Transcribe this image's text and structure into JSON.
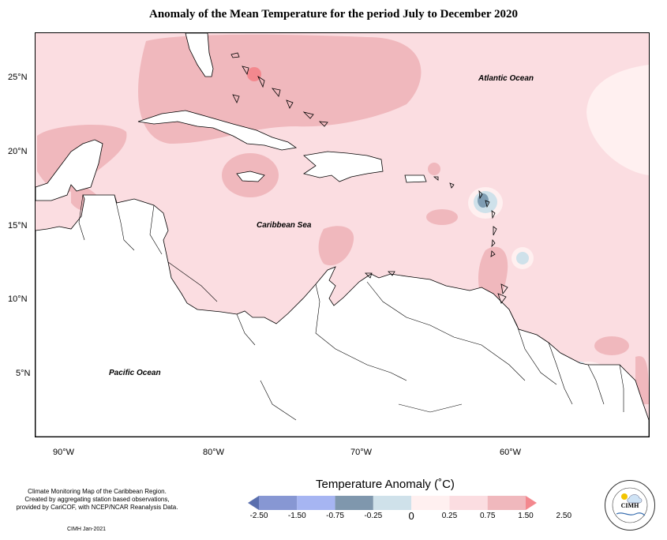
{
  "title": "Anomaly of the Mean Temperature for the period July to December 2020",
  "map": {
    "latitude_ticks": [
      "25°N",
      "20°N",
      "15°N",
      "10°N",
      "5°N"
    ],
    "longitude_ticks": [
      "90°W",
      "80°W",
      "70°W",
      "60°W"
    ],
    "labels": {
      "atlantic": "Atlantic Ocean",
      "caribbean": "Caribbean Sea",
      "pacific": "Pacific Ocean"
    },
    "colors": {
      "anom_025_075": "#fbdde1",
      "anom_075_150": "#f0b8bd",
      "anom_150_250": "#f3888e",
      "anom_0_025": "#fff0f0",
      "anom_neg_025_0": "#cfe1ea",
      "anom_neg_075_025": "#7f9db3",
      "land_outline": "#000000"
    }
  },
  "credit": {
    "line1": "Climate Monitoring Map of the Caribbean Region.",
    "line2": "Created by aggregating station based observations,",
    "line3": "provided by CariCOF, with NCEP/NCAR Reanalysis Data.",
    "date": "CIMH Jan-2021"
  },
  "legend": {
    "title": "Temperature Anomaly (˚C)",
    "labels": [
      "-2.50",
      "-1.50",
      "-0.75",
      "-0.25",
      "0",
      "0.25",
      "0.75",
      "1.50",
      "2.50"
    ],
    "colors": [
      "#5a6fae",
      "#8797d3",
      "#a6b5f2",
      "#7f97ad",
      "#cfe1ea",
      "#fff0f0",
      "#fbdde1",
      "#f0b8bd",
      "#f3888e"
    ]
  },
  "logo": {
    "text": "CIMH"
  }
}
